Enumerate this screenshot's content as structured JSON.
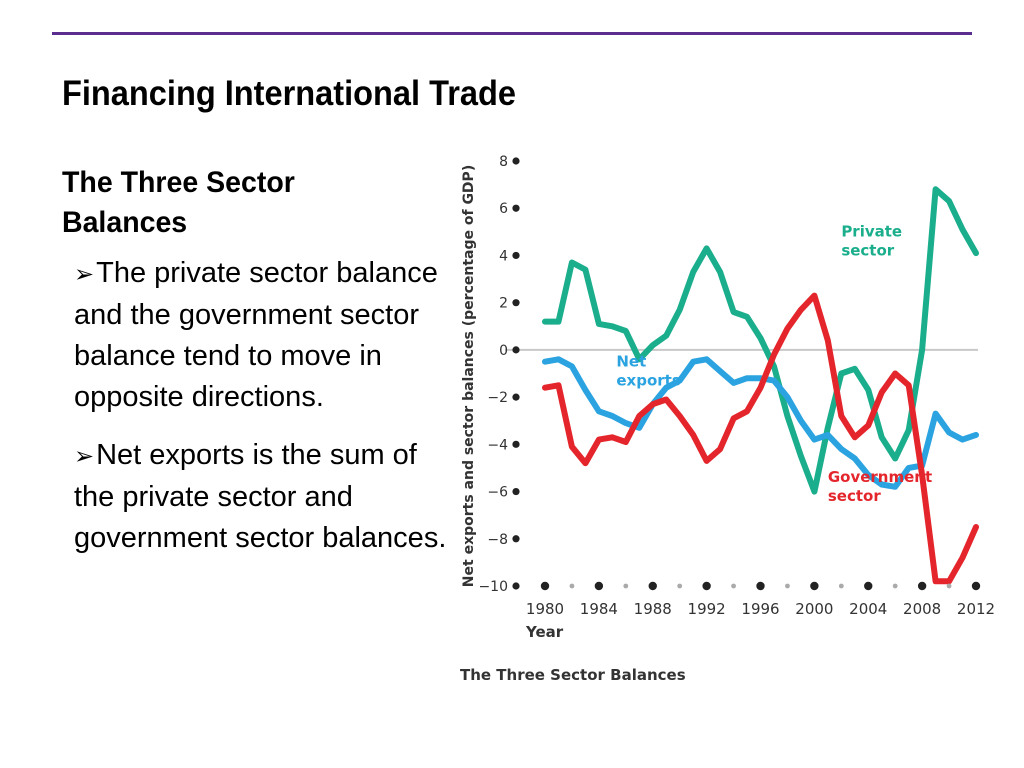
{
  "slide": {
    "title": "Financing International Trade",
    "subtitle": "The Three Sector Balances",
    "bullets": [
      "The private sector balance and the government sector balance tend to move in opposite directions.",
      "Net exports is the sum of the private sector and government sector balances."
    ],
    "bullet_marker": "➢",
    "rule_color": "#5b2d8e"
  },
  "chart_data": {
    "type": "line",
    "caption": "The Three Sector Balances",
    "xlabel": "Year",
    "ylabel": "Net exports and sector balances (percentage of GDP)",
    "xlim": [
      1978,
      2014
    ],
    "ylim": [
      -10,
      8
    ],
    "x_ticks": [
      1980,
      1984,
      1988,
      1992,
      1996,
      2000,
      2004,
      2008,
      2012
    ],
    "y_ticks": [
      8,
      6,
      4,
      2,
      0,
      -2,
      -4,
      -6,
      -8,
      -10
    ],
    "y_tick_labels": [
      "8",
      "6",
      "4",
      "2",
      "0",
      "−2",
      "−4",
      "−6",
      "−8",
      "−10"
    ],
    "zero_line": true,
    "series": [
      {
        "name": "Private sector",
        "color": "#1aae8c",
        "x": [
          1980,
          1981,
          1982,
          1983,
          1984,
          1985,
          1986,
          1987,
          1988,
          1989,
          1990,
          1991,
          1992,
          1993,
          1994,
          1995,
          1996,
          1997,
          1998,
          1999,
          2000,
          2001,
          2002,
          2003,
          2004,
          2005,
          2006,
          2007,
          2008,
          2009,
          2010,
          2011,
          2012
        ],
        "values": [
          1.2,
          1.2,
          3.7,
          3.4,
          1.1,
          1.0,
          0.8,
          -0.4,
          0.2,
          0.6,
          1.7,
          3.3,
          4.3,
          3.3,
          1.6,
          1.4,
          0.5,
          -0.7,
          -2.8,
          -4.5,
          -6.0,
          -3.3,
          -1.0,
          -0.8,
          -1.7,
          -3.7,
          -4.6,
          -3.4,
          0.0,
          6.8,
          6.3,
          5.1,
          4.1
        ]
      },
      {
        "name": "Net exports",
        "color": "#2ba3e0",
        "x": [
          1980,
          1981,
          1982,
          1983,
          1984,
          1985,
          1986,
          1987,
          1988,
          1989,
          1990,
          1991,
          1992,
          1993,
          1994,
          1995,
          1996,
          1997,
          1998,
          1999,
          2000,
          2001,
          2002,
          2003,
          2004,
          2005,
          2006,
          2007,
          2008,
          2009,
          2010,
          2011,
          2012
        ],
        "values": [
          -0.5,
          -0.4,
          -0.7,
          -1.7,
          -2.6,
          -2.8,
          -3.1,
          -3.3,
          -2.3,
          -1.6,
          -1.3,
          -0.5,
          -0.4,
          -0.9,
          -1.4,
          -1.2,
          -1.2,
          -1.3,
          -2.0,
          -3.0,
          -3.8,
          -3.6,
          -4.2,
          -4.6,
          -5.3,
          -5.7,
          -5.8,
          -5.0,
          -4.9,
          -2.7,
          -3.5,
          -3.8,
          -3.6
        ]
      },
      {
        "name": "Government sector",
        "color": "#e4262c",
        "x": [
          1980,
          1981,
          1982,
          1983,
          1984,
          1985,
          1986,
          1987,
          1988,
          1989,
          1990,
          1991,
          1992,
          1993,
          1994,
          1995,
          1996,
          1997,
          1998,
          1999,
          2000,
          2001,
          2002,
          2003,
          2004,
          2005,
          2006,
          2007,
          2008,
          2009,
          2010,
          2011,
          2012
        ],
        "values": [
          -1.6,
          -1.5,
          -4.1,
          -4.8,
          -3.8,
          -3.7,
          -3.9,
          -2.8,
          -2.3,
          -2.1,
          -2.8,
          -3.6,
          -4.7,
          -4.2,
          -2.9,
          -2.6,
          -1.6,
          -0.2,
          0.9,
          1.7,
          2.3,
          0.4,
          -2.8,
          -3.7,
          -3.2,
          -1.8,
          -1.0,
          -1.5,
          -5.3,
          -9.8,
          -9.8,
          -8.8,
          -7.5
        ]
      }
    ],
    "series_labels": [
      {
        "lines": [
          "Private",
          "sector"
        ],
        "x": 2002,
        "y": 4.8,
        "color": "#1aae8c"
      },
      {
        "lines": [
          "Net",
          "exports"
        ],
        "x": 1985.3,
        "y": -0.7,
        "color": "#2ba3e0"
      },
      {
        "lines": [
          "Government",
          "sector"
        ],
        "x": 2001,
        "y": -5.6,
        "color": "#e4262c"
      }
    ]
  }
}
